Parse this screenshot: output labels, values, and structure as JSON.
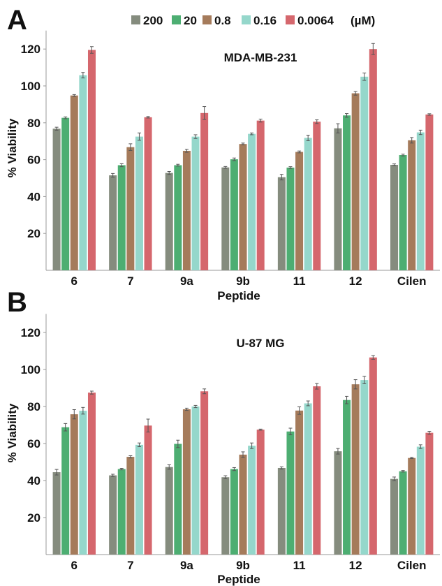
{
  "legend": {
    "unit": "(µM)",
    "entries": [
      {
        "label": "200",
        "color": "#858c7e"
      },
      {
        "label": "20",
        "color": "#4dae72"
      },
      {
        "label": "0.8",
        "color": "#a57b5b"
      },
      {
        "label": "0.16",
        "color": "#95d7cb"
      },
      {
        "label": "0.0064",
        "color": "#d5676d"
      }
    ]
  },
  "chart_data": [
    {
      "panel_label": "A",
      "type": "bar",
      "title": "MDA-MB-231",
      "xlabel": "Peptide",
      "ylabel": "% Viability",
      "ylim": [
        0,
        130
      ],
      "yticks": [
        20,
        40,
        60,
        80,
        100,
        120
      ],
      "categories": [
        "6",
        "7",
        "9a",
        "9b",
        "11",
        "12",
        "Cilen"
      ],
      "legend_placement": "top",
      "grid": false,
      "error_bars": true,
      "series": [
        {
          "name": "200",
          "color": "#858c7e",
          "values": [
            76.8,
            51.5,
            52.8,
            55.8,
            50.5,
            77.0,
            57.2
          ],
          "errors": [
            0.8,
            1.0,
            0.8,
            0.5,
            1.5,
            2.5,
            0.5
          ]
        },
        {
          "name": "20",
          "color": "#4dae72",
          "values": [
            82.7,
            57.0,
            57.0,
            60.2,
            55.7,
            84.0,
            62.5
          ],
          "errors": [
            0.5,
            0.8,
            0.5,
            0.7,
            0.5,
            1.0,
            0.5
          ]
        },
        {
          "name": "0.8",
          "color": "#a57b5b",
          "values": [
            94.8,
            66.8,
            64.8,
            68.5,
            64.2,
            96.0,
            70.5
          ],
          "errors": [
            0.5,
            1.8,
            0.8,
            0.5,
            0.5,
            1.0,
            1.5
          ]
        },
        {
          "name": "0.16",
          "color": "#95d7cb",
          "values": [
            105.8,
            72.5,
            72.5,
            74.0,
            71.8,
            105.0,
            74.8
          ],
          "errors": [
            1.5,
            2.0,
            1.0,
            0.5,
            1.5,
            2.0,
            1.2
          ]
        },
        {
          "name": "0.0064",
          "color": "#d5676d",
          "values": [
            119.5,
            83.0,
            85.3,
            81.2,
            80.6,
            120.0,
            84.5
          ],
          "errors": [
            1.8,
            0.4,
            3.5,
            0.8,
            1.0,
            3.0,
            0.4
          ]
        }
      ]
    },
    {
      "panel_label": "B",
      "type": "bar",
      "title": "U-87 MG",
      "xlabel": "Peptide",
      "ylabel": "% Viability",
      "ylim": [
        0,
        130
      ],
      "yticks": [
        20,
        40,
        60,
        80,
        100,
        120
      ],
      "categories": [
        "6",
        "7",
        "9a",
        "9b",
        "11",
        "12",
        "Cilen"
      ],
      "legend_placement": "none",
      "grid": false,
      "error_bars": true,
      "series": [
        {
          "name": "200",
          "color": "#858c7e",
          "values": [
            44.5,
            42.8,
            47.3,
            41.8,
            46.8,
            55.8,
            40.9
          ],
          "errors": [
            1.5,
            0.6,
            1.2,
            0.8,
            0.6,
            1.5,
            1.0
          ]
        },
        {
          "name": "20",
          "color": "#4dae72",
          "values": [
            68.8,
            46.2,
            59.8,
            46.2,
            66.5,
            83.5,
            45.0
          ],
          "errors": [
            2.0,
            0.4,
            2.0,
            0.8,
            1.8,
            2.0,
            0.4
          ]
        },
        {
          "name": "0.8",
          "color": "#a57b5b",
          "values": [
            75.8,
            52.8,
            78.5,
            54.0,
            77.8,
            92.0,
            52.2
          ],
          "errors": [
            2.5,
            0.6,
            0.6,
            1.5,
            2.0,
            2.5,
            0.3
          ]
        },
        {
          "name": "0.16",
          "color": "#95d7cb",
          "values": [
            77.7,
            59.3,
            80.0,
            58.8,
            81.7,
            94.3,
            58.3
          ],
          "errors": [
            1.8,
            1.0,
            0.6,
            1.5,
            1.3,
            2.0,
            1.0
          ]
        },
        {
          "name": "0.0064",
          "color": "#d5676d",
          "values": [
            87.5,
            69.7,
            88.2,
            67.5,
            90.9,
            106.5,
            65.8
          ],
          "errors": [
            0.8,
            3.5,
            1.3,
            0.3,
            1.5,
            1.0,
            0.8
          ]
        }
      ]
    }
  ]
}
